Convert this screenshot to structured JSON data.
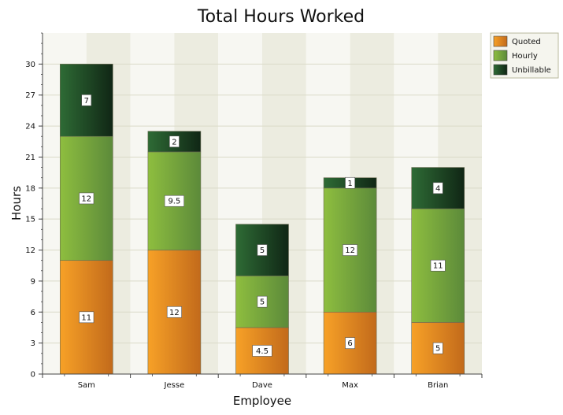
{
  "chart_data": {
    "type": "bar",
    "stacked": true,
    "title": "Total Hours Worked",
    "xlabel": "Employee",
    "ylabel": "Hours",
    "categories": [
      "Sam",
      "Jesse",
      "Dave",
      "Max",
      "Brian"
    ],
    "series": [
      {
        "name": "Quoted",
        "values": [
          11,
          12,
          4.5,
          6,
          5
        ],
        "color": "#E8881E"
      },
      {
        "name": "Hourly",
        "values": [
          12,
          9.5,
          5,
          12,
          11
        ],
        "color": "#7FAE3C"
      },
      {
        "name": "Unbillable",
        "values": [
          7,
          2,
          5,
          1,
          4
        ],
        "color": "#1F4F2A"
      }
    ],
    "ylim": [
      0,
      33
    ],
    "yticks": [
      0,
      3,
      6,
      9,
      12,
      15,
      18,
      21,
      24,
      27,
      30
    ],
    "grid": true,
    "legend_position": "top-right"
  }
}
